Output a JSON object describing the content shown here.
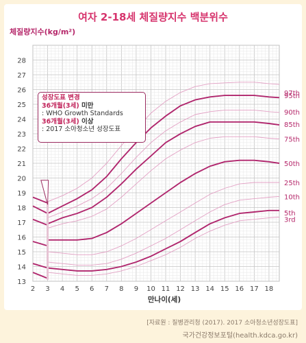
{
  "page": {
    "title": "여자 2-18세 체질량지수 백분위수",
    "source": "[자료원 : 질병관리청 (2017). 2017 소아청소년성장도표]",
    "site": "국가건강정보포털(health.kdca.go.kr)"
  },
  "annotation": {
    "line1": "성장도표 변경",
    "line2a": "36개월(3세)",
    "line2b": " 미만",
    "line3": ": WHO Growth Standards",
    "line4a": "36개월(3세)",
    "line4b": " 이상",
    "line5": ": 2017 소아청소년 성장도표"
  },
  "chart_data": {
    "type": "line",
    "title": "여자 2-18세 체질량지수 백분위수",
    "ylabel": "체질량지수(kg/m²)",
    "xlabel": "만나이(세)",
    "xlim": [
      2,
      18.7
    ],
    "ylim": [
      13,
      29
    ],
    "x_ticks": [
      "2",
      "3",
      "4",
      "5",
      "6",
      "7",
      "8",
      "9",
      "10",
      "11",
      "12",
      "13",
      "14",
      "15",
      "16",
      "17",
      "18"
    ],
    "y_ticks": [
      "13",
      "14",
      "15",
      "16",
      "17",
      "18",
      "19",
      "20",
      "21",
      "22",
      "23",
      "24",
      "25",
      "26",
      "27",
      "28"
    ],
    "grid": true,
    "colors": {
      "bold": "#b0266d",
      "thin": "#e3a0c4",
      "grid": "#cfcfcf",
      "text": "#b5276a"
    },
    "who_segment": {
      "x": [
        2,
        3
      ],
      "series": [
        {
          "name": "97th",
          "values": [
            18.7,
            18.3
          ]
        },
        {
          "name": "95th",
          "values": [
            18.1,
            17.6
          ]
        },
        {
          "name": "85th",
          "values": [
            17.2,
            16.8
          ]
        },
        {
          "name": "50th",
          "values": [
            15.7,
            15.4
          ]
        },
        {
          "name": "5th",
          "values": [
            14.2,
            13.9
          ]
        },
        {
          "name": "3rd",
          "values": [
            13.6,
            13.2
          ]
        }
      ]
    },
    "series": [
      {
        "name": "97th",
        "bold": false,
        "x": [
          3,
          4,
          5,
          6,
          7,
          8,
          9,
          10,
          11,
          12,
          13,
          14,
          15,
          16,
          17,
          18,
          18.7
        ],
        "values": [
          18.4,
          18.8,
          19.3,
          20.0,
          21.0,
          22.2,
          23.3,
          24.4,
          25.2,
          25.8,
          26.2,
          26.4,
          26.45,
          26.5,
          26.5,
          26.4,
          26.35
        ]
      },
      {
        "name": "95th",
        "bold": true,
        "x": [
          3,
          4,
          5,
          6,
          7,
          8,
          9,
          10,
          11,
          12,
          13,
          14,
          15,
          16,
          17,
          18,
          18.7
        ],
        "values": [
          17.6,
          18.1,
          18.6,
          19.2,
          20.1,
          21.3,
          22.4,
          23.4,
          24.2,
          24.9,
          25.3,
          25.5,
          25.6,
          25.6,
          25.6,
          25.5,
          25.45
        ]
      },
      {
        "name": "90th",
        "bold": false,
        "x": [
          3,
          4,
          5,
          6,
          7,
          8,
          9,
          10,
          11,
          12,
          13,
          14,
          15,
          16,
          17,
          18,
          18.7
        ],
        "values": [
          17.3,
          17.7,
          18.1,
          18.6,
          19.3,
          20.3,
          21.4,
          22.4,
          23.2,
          23.8,
          24.3,
          24.5,
          24.6,
          24.6,
          24.6,
          24.5,
          24.45
        ]
      },
      {
        "name": "85th",
        "bold": true,
        "x": [
          3,
          4,
          5,
          6,
          7,
          8,
          9,
          10,
          11,
          12,
          13,
          14,
          15,
          16,
          17,
          18,
          18.7
        ],
        "values": [
          16.9,
          17.3,
          17.6,
          18.0,
          18.7,
          19.6,
          20.6,
          21.5,
          22.4,
          23.0,
          23.5,
          23.8,
          23.8,
          23.8,
          23.8,
          23.7,
          23.6
        ]
      },
      {
        "name": "75th",
        "bold": false,
        "x": [
          3,
          4,
          5,
          6,
          7,
          8,
          9,
          10,
          11,
          12,
          13,
          14,
          15,
          16,
          17,
          18,
          18.7
        ],
        "values": [
          16.6,
          16.9,
          17.1,
          17.4,
          17.9,
          18.7,
          19.6,
          20.5,
          21.3,
          21.9,
          22.4,
          22.7,
          22.8,
          22.8,
          22.8,
          22.7,
          22.65
        ]
      },
      {
        "name": "50th",
        "bold": true,
        "x": [
          3,
          4,
          5,
          6,
          7,
          8,
          9,
          10,
          11,
          12,
          13,
          14,
          15,
          16,
          17,
          18,
          18.7
        ],
        "values": [
          15.8,
          15.8,
          15.8,
          15.9,
          16.3,
          16.9,
          17.6,
          18.3,
          19.0,
          19.7,
          20.3,
          20.8,
          21.1,
          21.2,
          21.2,
          21.1,
          21.0
        ]
      },
      {
        "name": "25th",
        "bold": false,
        "x": [
          3,
          4,
          5,
          6,
          7,
          8,
          9,
          10,
          11,
          12,
          13,
          14,
          15,
          16,
          17,
          18,
          18.7
        ],
        "values": [
          15.0,
          14.9,
          14.8,
          14.8,
          15.0,
          15.4,
          15.9,
          16.5,
          17.1,
          17.7,
          18.3,
          18.9,
          19.3,
          19.6,
          19.7,
          19.7,
          19.7
        ]
      },
      {
        "name": "10th",
        "bold": false,
        "x": [
          3,
          4,
          5,
          6,
          7,
          8,
          9,
          10,
          11,
          12,
          13,
          14,
          15,
          16,
          17,
          18,
          18.7
        ],
        "values": [
          14.3,
          14.2,
          14.1,
          14.1,
          14.2,
          14.5,
          14.9,
          15.4,
          15.9,
          16.5,
          17.1,
          17.7,
          18.2,
          18.5,
          18.6,
          18.7,
          18.75
        ]
      },
      {
        "name": "5th",
        "bold": true,
        "x": [
          3,
          4,
          5,
          6,
          7,
          8,
          9,
          10,
          11,
          12,
          13,
          14,
          15,
          16,
          17,
          18,
          18.7
        ],
        "values": [
          13.9,
          13.8,
          13.7,
          13.7,
          13.8,
          14.0,
          14.3,
          14.7,
          15.2,
          15.7,
          16.3,
          16.9,
          17.3,
          17.6,
          17.7,
          17.8,
          17.8
        ]
      },
      {
        "name": "3rd",
        "bold": false,
        "x": [
          3,
          4,
          5,
          6,
          7,
          8,
          9,
          10,
          11,
          12,
          13,
          14,
          15,
          16,
          17,
          18,
          18.7
        ],
        "values": [
          13.6,
          13.5,
          13.4,
          13.4,
          13.5,
          13.7,
          14.0,
          14.4,
          14.8,
          15.3,
          15.9,
          16.4,
          16.8,
          17.1,
          17.2,
          17.3,
          17.35
        ]
      }
    ],
    "annotations": [
      "성장도표 변경"
    ]
  }
}
